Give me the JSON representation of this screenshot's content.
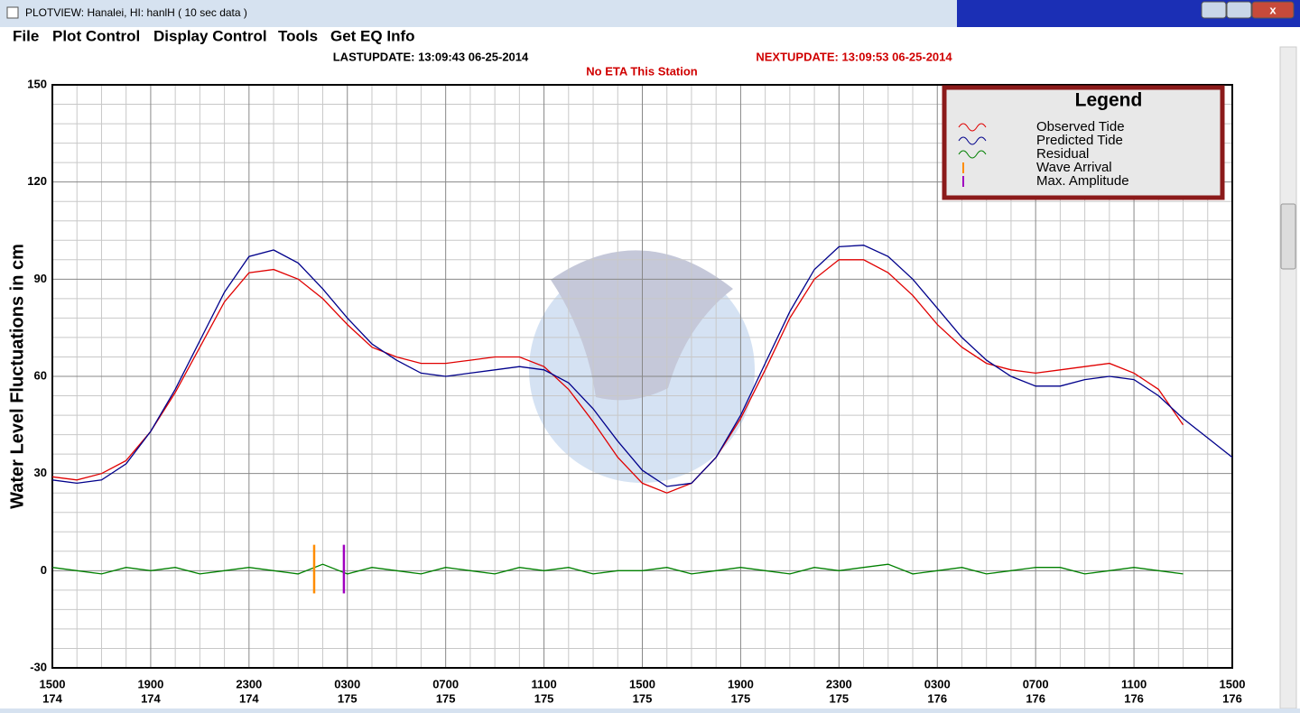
{
  "window": {
    "title": "PLOTVIEW:   Hanalei, HI: hanlH ( 10 sec data )"
  },
  "menu": [
    "File",
    "Plot Control",
    "Display Control",
    "Tools",
    "Get EQ Info"
  ],
  "status": {
    "last_update": "LASTUPDATE: 13:09:43 06-25-2014",
    "next_update": "NEXTUPDATE: 13:09:53 06-25-2014",
    "eta": "No ETA This Station"
  },
  "chart_data": {
    "type": "line",
    "y_label": "Water Level Fluctuations in cm",
    "legend_title": "Legend",
    "legend": "upper right",
    "grid": true,
    "x": [
      0,
      1,
      2,
      3,
      4,
      5,
      6,
      7,
      8,
      9,
      10,
      11,
      12,
      13,
      14,
      15,
      16,
      17,
      18,
      19,
      20,
      21,
      22,
      23,
      24,
      25,
      26,
      27,
      28,
      29,
      30,
      31,
      32,
      33,
      34,
      35,
      36,
      37,
      38,
      39,
      40,
      41,
      42,
      43,
      44,
      45,
      46,
      47,
      48
    ],
    "xlim": [
      0,
      48
    ],
    "xticks": [
      {
        "value": 0,
        "label": "1500"
      },
      {
        "value": 4,
        "label": "1900"
      },
      {
        "value": 8,
        "label": "2300"
      },
      {
        "value": 12,
        "label": "0300"
      },
      {
        "value": 16,
        "label": "0700"
      },
      {
        "value": 20,
        "label": "1100"
      },
      {
        "value": 24,
        "label": "1500"
      },
      {
        "value": 28,
        "label": "1900"
      },
      {
        "value": 32,
        "label": "2300"
      },
      {
        "value": 36,
        "label": "0300"
      },
      {
        "value": 40,
        "label": "0700"
      },
      {
        "value": 44,
        "label": "1100"
      },
      {
        "value": 48,
        "label": "1500"
      }
    ],
    "xtick_days": [
      "174",
      "174",
      "174",
      "175",
      "175",
      "175",
      "175",
      "175",
      "175",
      "176",
      "176",
      "176",
      "176"
    ],
    "ylim": [
      -30,
      150
    ],
    "yticks": [
      -30,
      0,
      30,
      60,
      90,
      120,
      150
    ],
    "series": [
      {
        "name": "Observed Tide",
        "color": "#e00000",
        "values": [
          29,
          28,
          30,
          34,
          43,
          55,
          69,
          83,
          92,
          93,
          90,
          84,
          76,
          69,
          66,
          64,
          64,
          65,
          66,
          66,
          63,
          56,
          46,
          35,
          27,
          24,
          27,
          35,
          47,
          62,
          78,
          90,
          96,
          96,
          92,
          85,
          76,
          69,
          64,
          62,
          61,
          62,
          63,
          64,
          61,
          56,
          45,
          null,
          null
        ]
      },
      {
        "name": "Predicted Tide",
        "color": "#00008b",
        "values": [
          28,
          27,
          28,
          33,
          43,
          56,
          71,
          86,
          97,
          99,
          95,
          87,
          78,
          70,
          65,
          61,
          60,
          61,
          62,
          63,
          62,
          58,
          50,
          40,
          31,
          26,
          27,
          35,
          48,
          64,
          80,
          93,
          100,
          100.5,
          97,
          90,
          81,
          72,
          65,
          60,
          57,
          57,
          59,
          60,
          59,
          54,
          47,
          41,
          35
        ]
      },
      {
        "name": "Residual",
        "color": "#008000",
        "values": [
          1,
          0,
          -1,
          1,
          0,
          1,
          -1,
          0,
          1,
          0,
          -1,
          2,
          -1,
          1,
          0,
          -1,
          1,
          0,
          -1,
          1,
          0,
          1,
          -1,
          0,
          0,
          1,
          -1,
          0,
          1,
          0,
          -1,
          1,
          0,
          1,
          2,
          -1,
          0,
          1,
          -1,
          0,
          1,
          1,
          -1,
          0,
          1,
          0,
          -1,
          null,
          null
        ]
      }
    ],
    "markers": [
      {
        "name": "Wave Arrival",
        "color": "#ff8c00",
        "x": 10.65,
        "ymin": -7,
        "ymax": 8
      },
      {
        "name": "Max. Amplitude",
        "color": "#a000c0",
        "x": 11.86,
        "ymin": -7,
        "ymax": 8
      }
    ]
  }
}
